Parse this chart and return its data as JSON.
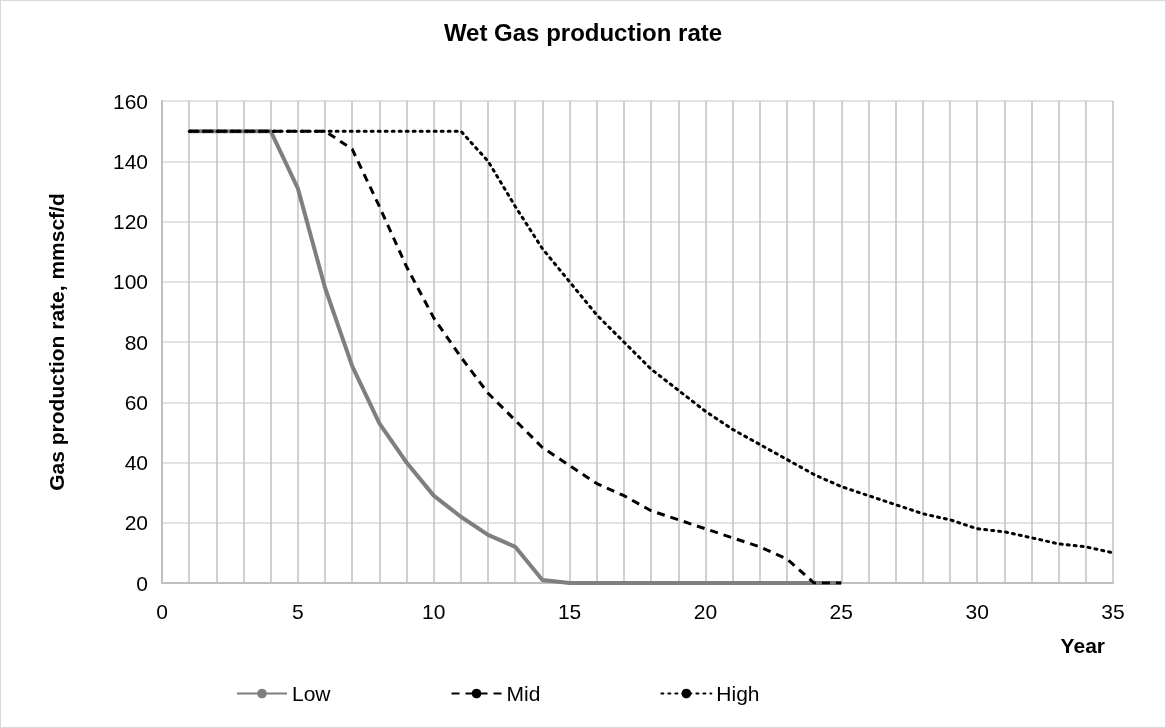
{
  "chart_data": {
    "type": "line",
    "title": "Wet Gas production rate",
    "xlabel": "Year",
    "ylabel": "Gas production rate, mmscf/d",
    "series": [
      {
        "name": "Low",
        "color": "#7f7f7f",
        "line_style": "solid",
        "x": [
          1,
          2,
          3,
          4,
          5,
          6,
          7,
          8,
          9,
          10,
          11,
          12,
          13,
          14,
          15,
          16,
          17,
          18,
          19,
          20,
          21,
          22,
          23,
          24,
          25
        ],
        "values": [
          150,
          150,
          150,
          150,
          131,
          98,
          72,
          53,
          40,
          29,
          22,
          16,
          12,
          1,
          0,
          0,
          0,
          0,
          0,
          0,
          0,
          0,
          0,
          0,
          0
        ]
      },
      {
        "name": "Mid",
        "color": "#000000",
        "line_style": "dashed",
        "x": [
          1,
          2,
          3,
          4,
          5,
          6,
          7,
          8,
          9,
          10,
          11,
          12,
          13,
          14,
          15,
          16,
          17,
          18,
          19,
          20,
          21,
          22,
          23,
          24,
          25
        ],
        "values": [
          150,
          150,
          150,
          150,
          150,
          150,
          144,
          125,
          105,
          88,
          75,
          63,
          54,
          45,
          39,
          33,
          29,
          24,
          21,
          18,
          15,
          12,
          8,
          0,
          0
        ]
      },
      {
        "name": "High",
        "color": "#000000",
        "line_style": "dotted",
        "x": [
          1,
          2,
          3,
          4,
          5,
          6,
          7,
          8,
          9,
          10,
          11,
          12,
          13,
          14,
          15,
          16,
          17,
          18,
          19,
          20,
          21,
          22,
          23,
          24,
          25,
          26,
          27,
          28,
          29,
          30,
          31,
          32,
          33,
          34,
          35
        ],
        "values": [
          150,
          150,
          150,
          150,
          150,
          150,
          150,
          150,
          150,
          150,
          150,
          140,
          125,
          111,
          100,
          89,
          80,
          71,
          64,
          57,
          51,
          46,
          41,
          36,
          32,
          29,
          26,
          23,
          21,
          18,
          17,
          15,
          13,
          12,
          10
        ]
      }
    ],
    "xlim": [
      0,
      35
    ],
    "xticks": [
      0,
      {
        "value": 1,
        "label": null
      },
      {
        "value": 2,
        "label": null
      },
      {
        "value": 3,
        "label": null
      },
      {
        "value": 4,
        "label": null
      },
      5,
      {
        "value": 6,
        "label": null
      },
      {
        "value": 7,
        "label": null
      },
      {
        "value": 8,
        "label": null
      },
      {
        "value": 9,
        "label": null
      },
      10,
      {
        "value": 11,
        "label": null
      },
      {
        "value": 12,
        "label": null
      },
      {
        "value": 13,
        "label": null
      },
      {
        "value": 14,
        "label": null
      },
      15,
      {
        "value": 16,
        "label": null
      },
      {
        "value": 17,
        "label": null
      },
      {
        "value": 18,
        "label": null
      },
      {
        "value": 19,
        "label": null
      },
      20,
      {
        "value": 21,
        "label": null
      },
      {
        "value": 22,
        "label": null
      },
      {
        "value": 23,
        "label": null
      },
      {
        "value": 24,
        "label": null
      },
      25,
      {
        "value": 26,
        "label": null
      },
      {
        "value": 27,
        "label": null
      },
      {
        "value": 28,
        "label": null
      },
      {
        "value": 29,
        "label": null
      },
      30,
      {
        "value": 31,
        "label": null
      },
      {
        "value": 32,
        "label": null
      },
      {
        "value": 33,
        "label": null
      },
      {
        "value": 34,
        "label": null
      },
      35
    ],
    "ylim": [
      0,
      160
    ],
    "yticks": [
      0,
      20,
      40,
      60,
      80,
      100,
      120,
      140,
      160
    ],
    "grid": true,
    "legend": "bottom",
    "marker": "none"
  }
}
